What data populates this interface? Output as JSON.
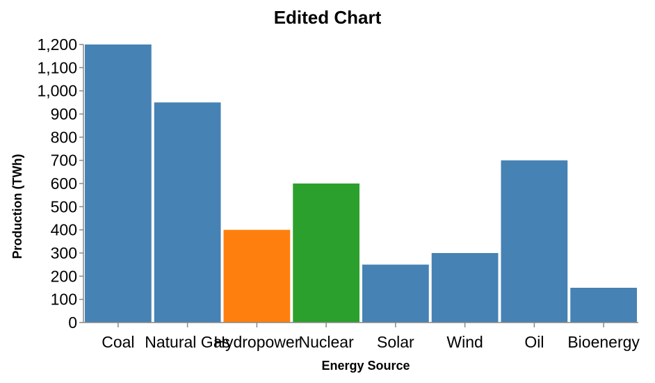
{
  "chart_data": {
    "type": "bar",
    "title": "Edited Chart",
    "xlabel": "Energy Source",
    "ylabel": "Production (TWh)",
    "ylim": [
      0,
      1200
    ],
    "yticks": [
      0,
      100,
      200,
      300,
      400,
      500,
      600,
      700,
      800,
      900,
      1000,
      1100,
      1200
    ],
    "ytick_labels": [
      "0",
      "100",
      "200",
      "300",
      "400",
      "500",
      "600",
      "700",
      "800",
      "900",
      "1,000",
      "1,100",
      "1,200"
    ],
    "grid": false,
    "categories": [
      "Coal",
      "Natural Gas",
      "Hydropower",
      "Nuclear",
      "Solar",
      "Wind",
      "Oil",
      "Bioenergy"
    ],
    "values": [
      1200,
      950,
      400,
      600,
      250,
      300,
      700,
      150
    ],
    "colors": [
      "#4682b4",
      "#4682b4",
      "#ff7f0e",
      "#2ca02c",
      "#4682b4",
      "#4682b4",
      "#4682b4",
      "#4682b4"
    ]
  }
}
